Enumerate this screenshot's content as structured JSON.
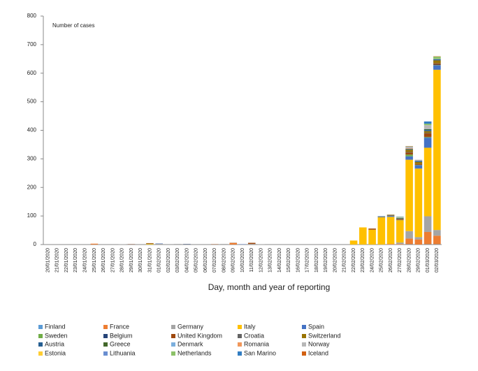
{
  "chart_data": {
    "type": "stacked_bar",
    "annotation": "Number of cases",
    "x_label": "Day, month and year of reporting",
    "categories": [
      "20/01/2020",
      "21/01/2020",
      "22/01/2020",
      "23/01/2020",
      "24/01/2020",
      "25/01/2020",
      "26/01/2020",
      "27/01/2020",
      "28/01/2020",
      "29/01/2020",
      "30/01/2020",
      "31/01/2020",
      "01/02/2020",
      "02/02/2020",
      "03/02/2020",
      "04/02/2020",
      "05/02/2020",
      "06/02/2020",
      "07/02/2020",
      "08/02/2020",
      "09/02/2020",
      "10/02/2020",
      "11/02/2020",
      "12/02/2020",
      "13/02/2020",
      "14/02/2020",
      "15/02/2020",
      "16/02/2020",
      "17/02/2020",
      "18/02/2020",
      "19/02/2020",
      "20/02/2020",
      "21/02/2020",
      "22/02/2020",
      "23/02/2020",
      "24/02/2020",
      "25/02/2020",
      "26/02/2020",
      "27/02/2020",
      "28/02/2020",
      "29/02/2020",
      "01/03/2020",
      "02/03/2020"
    ],
    "ylim": [
      0,
      800
    ],
    "yticks": [
      0,
      100,
      200,
      300,
      400,
      500,
      600,
      700,
      800
    ],
    "series": [
      {
        "name": "Finland",
        "color": "#5b9bd5",
        "values": [
          0,
          0,
          0,
          0,
          0,
          0,
          0,
          0,
          0,
          1,
          0,
          0,
          0,
          0,
          0,
          0,
          0,
          0,
          0,
          0,
          0,
          0,
          0,
          0,
          0,
          0,
          0,
          0,
          0,
          0,
          0,
          0,
          0,
          0,
          0,
          0,
          0,
          0,
          0,
          1,
          0,
          1,
          1
        ]
      },
      {
        "name": "France",
        "color": "#ed7d31",
        "values": [
          0,
          0,
          0,
          0,
          0,
          3,
          0,
          0,
          0,
          1,
          0,
          0,
          0,
          0,
          0,
          0,
          0,
          0,
          0,
          0,
          5,
          0,
          0,
          0,
          0,
          0,
          0,
          0,
          0,
          0,
          0,
          0,
          0,
          0,
          0,
          0,
          0,
          2,
          2,
          20,
          18,
          43,
          30
        ]
      },
      {
        "name": "Germany",
        "color": "#a5a5a5",
        "values": [
          0,
          0,
          0,
          0,
          0,
          0,
          0,
          0,
          1,
          0,
          0,
          0,
          3,
          0,
          2,
          1,
          0,
          0,
          0,
          2,
          0,
          0,
          2,
          1,
          0,
          0,
          0,
          0,
          0,
          0,
          0,
          0,
          0,
          0,
          0,
          0,
          0,
          0,
          5,
          26,
          8,
          55,
          20
        ]
      },
      {
        "name": "Italy",
        "color": "#ffc000",
        "values": [
          0,
          0,
          0,
          0,
          0,
          0,
          0,
          0,
          0,
          0,
          0,
          2,
          0,
          0,
          0,
          0,
          0,
          0,
          0,
          0,
          0,
          0,
          0,
          0,
          0,
          0,
          0,
          0,
          0,
          0,
          0,
          0,
          0,
          14,
          60,
          52,
          95,
          95,
          78,
          250,
          240,
          240,
          561
        ]
      },
      {
        "name": "Spain",
        "color": "#4472c4",
        "values": [
          0,
          0,
          0,
          0,
          0,
          0,
          0,
          0,
          0,
          0,
          0,
          0,
          1,
          0,
          0,
          0,
          0,
          0,
          0,
          0,
          0,
          1,
          0,
          0,
          0,
          0,
          0,
          0,
          0,
          0,
          0,
          0,
          0,
          0,
          0,
          0,
          0,
          3,
          0,
          12,
          12,
          35,
          15
        ]
      },
      {
        "name": "Sweden",
        "color": "#70ad47",
        "values": [
          0,
          0,
          0,
          0,
          0,
          0,
          0,
          0,
          0,
          0,
          0,
          1,
          0,
          0,
          0,
          0,
          0,
          0,
          0,
          0,
          0,
          0,
          0,
          0,
          0,
          0,
          0,
          0,
          0,
          0,
          0,
          0,
          0,
          0,
          0,
          0,
          0,
          0,
          1,
          6,
          1,
          2,
          1
        ]
      },
      {
        "name": "Belgium",
        "color": "#264478",
        "values": [
          0,
          0,
          0,
          0,
          0,
          0,
          0,
          0,
          0,
          0,
          0,
          0,
          0,
          0,
          0,
          1,
          0,
          0,
          0,
          0,
          0,
          0,
          0,
          0,
          0,
          0,
          0,
          0,
          0,
          0,
          0,
          0,
          0,
          0,
          0,
          0,
          0,
          0,
          0,
          0,
          0,
          1,
          2
        ]
      },
      {
        "name": "United Kingdom",
        "color": "#9e480e",
        "values": [
          0,
          0,
          0,
          0,
          0,
          0,
          0,
          0,
          0,
          0,
          0,
          2,
          0,
          0,
          0,
          0,
          0,
          0,
          1,
          0,
          1,
          0,
          4,
          0,
          0,
          0,
          0,
          0,
          0,
          0,
          0,
          0,
          0,
          0,
          0,
          4,
          0,
          0,
          3,
          7,
          3,
          12,
          4
        ]
      },
      {
        "name": "Croatia",
        "color": "#636363",
        "values": [
          0,
          0,
          0,
          0,
          0,
          0,
          0,
          0,
          0,
          0,
          0,
          0,
          0,
          0,
          0,
          0,
          0,
          0,
          0,
          0,
          0,
          0,
          0,
          0,
          0,
          0,
          0,
          0,
          0,
          0,
          0,
          0,
          0,
          0,
          0,
          0,
          1,
          2,
          1,
          2,
          0,
          2,
          1
        ]
      },
      {
        "name": "Switzerland",
        "color": "#997300",
        "values": [
          0,
          0,
          0,
          0,
          0,
          0,
          0,
          0,
          0,
          0,
          0,
          0,
          0,
          0,
          0,
          0,
          0,
          0,
          0,
          0,
          0,
          0,
          0,
          0,
          0,
          0,
          0,
          0,
          0,
          0,
          0,
          0,
          0,
          0,
          0,
          0,
          1,
          1,
          0,
          8,
          7,
          6,
          10
        ]
      },
      {
        "name": "Austria",
        "color": "#255e91",
        "values": [
          0,
          0,
          0,
          0,
          0,
          0,
          0,
          0,
          0,
          0,
          0,
          0,
          0,
          0,
          0,
          0,
          0,
          0,
          0,
          0,
          0,
          0,
          0,
          0,
          0,
          0,
          0,
          0,
          0,
          0,
          0,
          0,
          0,
          0,
          0,
          0,
          2,
          0,
          1,
          2,
          4,
          4,
          4
        ]
      },
      {
        "name": "Greece",
        "color": "#43682b",
        "values": [
          0,
          0,
          0,
          0,
          0,
          0,
          0,
          0,
          0,
          0,
          0,
          0,
          0,
          0,
          0,
          0,
          0,
          0,
          0,
          0,
          0,
          0,
          0,
          0,
          0,
          0,
          0,
          0,
          0,
          0,
          0,
          0,
          0,
          0,
          0,
          0,
          0,
          1,
          2,
          1,
          0,
          3,
          0
        ]
      },
      {
        "name": "Denmark",
        "color": "#7cafdd",
        "values": [
          0,
          0,
          0,
          0,
          0,
          0,
          0,
          0,
          0,
          0,
          0,
          0,
          0,
          0,
          0,
          0,
          0,
          0,
          0,
          0,
          0,
          0,
          0,
          0,
          0,
          0,
          0,
          0,
          0,
          0,
          0,
          0,
          0,
          0,
          0,
          0,
          0,
          0,
          1,
          0,
          0,
          2,
          0
        ]
      },
      {
        "name": "Romania",
        "color": "#f1975a",
        "values": [
          0,
          0,
          0,
          0,
          0,
          0,
          0,
          0,
          0,
          0,
          0,
          0,
          0,
          0,
          0,
          0,
          0,
          0,
          0,
          0,
          0,
          0,
          0,
          0,
          0,
          0,
          0,
          0,
          0,
          0,
          0,
          0,
          0,
          0,
          0,
          0,
          0,
          1,
          0,
          2,
          0,
          1,
          0
        ]
      },
      {
        "name": "Norway",
        "color": "#b7b7b7",
        "values": [
          0,
          0,
          0,
          0,
          0,
          0,
          0,
          0,
          0,
          0,
          0,
          0,
          0,
          0,
          0,
          0,
          0,
          0,
          0,
          0,
          0,
          0,
          0,
          0,
          0,
          0,
          0,
          0,
          0,
          0,
          0,
          0,
          0,
          0,
          0,
          0,
          0,
          0,
          1,
          5,
          4,
          11,
          1
        ]
      },
      {
        "name": "Estonia",
        "color": "#ffcd33",
        "values": [
          0,
          0,
          0,
          0,
          0,
          0,
          0,
          0,
          0,
          0,
          0,
          0,
          0,
          0,
          0,
          0,
          0,
          0,
          0,
          0,
          0,
          0,
          0,
          0,
          0,
          0,
          0,
          0,
          0,
          0,
          0,
          0,
          0,
          0,
          0,
          0,
          0,
          0,
          1,
          0,
          0,
          0,
          0
        ]
      },
      {
        "name": "Lithuania",
        "color": "#698ed0",
        "values": [
          0,
          0,
          0,
          0,
          0,
          0,
          0,
          0,
          0,
          0,
          0,
          0,
          0,
          0,
          0,
          0,
          0,
          0,
          0,
          0,
          0,
          0,
          0,
          0,
          0,
          0,
          0,
          0,
          0,
          0,
          0,
          0,
          0,
          0,
          0,
          0,
          0,
          0,
          0,
          1,
          0,
          0,
          0
        ]
      },
      {
        "name": "Netherlands",
        "color": "#8cc168",
        "values": [
          0,
          0,
          0,
          0,
          0,
          0,
          0,
          0,
          0,
          0,
          0,
          0,
          0,
          0,
          0,
          0,
          0,
          0,
          0,
          0,
          0,
          0,
          0,
          0,
          0,
          0,
          0,
          0,
          0,
          0,
          0,
          0,
          0,
          0,
          0,
          0,
          0,
          0,
          1,
          1,
          0,
          5,
          8
        ]
      },
      {
        "name": "San Marino",
        "color": "#327dc2",
        "values": [
          0,
          0,
          0,
          0,
          0,
          0,
          0,
          0,
          0,
          0,
          0,
          0,
          0,
          0,
          0,
          0,
          0,
          0,
          0,
          0,
          0,
          0,
          0,
          0,
          0,
          0,
          0,
          0,
          0,
          0,
          0,
          0,
          0,
          0,
          0,
          0,
          0,
          0,
          1,
          0,
          0,
          8,
          0
        ]
      },
      {
        "name": "Iceland",
        "color": "#d26012",
        "values": [
          0,
          0,
          0,
          0,
          0,
          0,
          0,
          0,
          0,
          0,
          0,
          0,
          0,
          0,
          0,
          0,
          0,
          0,
          0,
          0,
          0,
          0,
          0,
          0,
          0,
          0,
          0,
          0,
          0,
          0,
          0,
          0,
          0,
          0,
          0,
          0,
          0,
          0,
          0,
          1,
          0,
          0,
          1
        ]
      }
    ]
  }
}
